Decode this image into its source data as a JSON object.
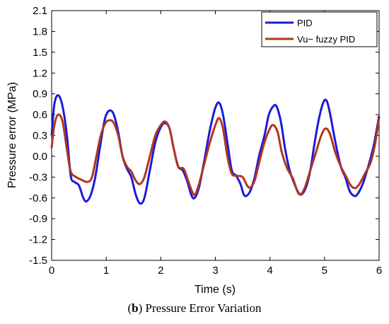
{
  "caption": {
    "letter": "b",
    "text": ") Pressure Error Variation",
    "open_paren": "("
  },
  "chart_data": {
    "type": "line",
    "title": "",
    "xlabel": "Time (s)",
    "ylabel": "Pressure error (MPa)",
    "xlim": [
      0,
      6
    ],
    "ylim": [
      -1.5,
      2.1
    ],
    "xticks": [
      0,
      1,
      2,
      3,
      4,
      5,
      6
    ],
    "yticks": [
      -1.5,
      -1.2,
      -0.9,
      -0.6,
      -0.3,
      0.0,
      0.3,
      0.6,
      0.9,
      1.2,
      1.5,
      1.8,
      2.1
    ],
    "grid": false,
    "legend": "top-right",
    "series": [
      {
        "name": "PID",
        "color": "#1a1adb",
        "points": [
          [
            0,
            0.3
          ],
          [
            0.05,
            0.75
          ],
          [
            0.12,
            0.88
          ],
          [
            0.2,
            0.72
          ],
          [
            0.28,
            0.3
          ],
          [
            0.35,
            -0.28
          ],
          [
            0.42,
            -0.37
          ],
          [
            0.5,
            -0.42
          ],
          [
            0.58,
            -0.6
          ],
          [
            0.64,
            -0.65
          ],
          [
            0.72,
            -0.55
          ],
          [
            0.8,
            -0.3
          ],
          [
            0.9,
            0.2
          ],
          [
            0.98,
            0.55
          ],
          [
            1.06,
            0.66
          ],
          [
            1.14,
            0.6
          ],
          [
            1.22,
            0.35
          ],
          [
            1.3,
            0.0
          ],
          [
            1.38,
            -0.18
          ],
          [
            1.46,
            -0.3
          ],
          [
            1.54,
            -0.55
          ],
          [
            1.62,
            -0.68
          ],
          [
            1.7,
            -0.6
          ],
          [
            1.8,
            -0.2
          ],
          [
            1.9,
            0.2
          ],
          [
            2.0,
            0.42
          ],
          [
            2.08,
            0.48
          ],
          [
            2.16,
            0.4
          ],
          [
            2.24,
            0.1
          ],
          [
            2.32,
            -0.15
          ],
          [
            2.4,
            -0.2
          ],
          [
            2.48,
            -0.35
          ],
          [
            2.56,
            -0.56
          ],
          [
            2.62,
            -0.6
          ],
          [
            2.7,
            -0.45
          ],
          [
            2.8,
            -0.05
          ],
          [
            2.9,
            0.38
          ],
          [
            3.0,
            0.7
          ],
          [
            3.07,
            0.77
          ],
          [
            3.14,
            0.6
          ],
          [
            3.22,
            0.2
          ],
          [
            3.3,
            -0.2
          ],
          [
            3.38,
            -0.28
          ],
          [
            3.46,
            -0.4
          ],
          [
            3.52,
            -0.55
          ],
          [
            3.57,
            -0.57
          ],
          [
            3.64,
            -0.5
          ],
          [
            3.72,
            -0.3
          ],
          [
            3.8,
            0.0
          ],
          [
            3.9,
            0.3
          ],
          [
            3.98,
            0.6
          ],
          [
            4.06,
            0.72
          ],
          [
            4.12,
            0.72
          ],
          [
            4.2,
            0.5
          ],
          [
            4.28,
            0.1
          ],
          [
            4.36,
            -0.2
          ],
          [
            4.44,
            -0.38
          ],
          [
            4.52,
            -0.52
          ],
          [
            4.58,
            -0.55
          ],
          [
            4.66,
            -0.45
          ],
          [
            4.74,
            -0.2
          ],
          [
            4.82,
            0.2
          ],
          [
            4.9,
            0.55
          ],
          [
            4.98,
            0.78
          ],
          [
            5.04,
            0.8
          ],
          [
            5.1,
            0.62
          ],
          [
            5.2,
            0.2
          ],
          [
            5.3,
            -0.15
          ],
          [
            5.38,
            -0.3
          ],
          [
            5.46,
            -0.5
          ],
          [
            5.54,
            -0.57
          ],
          [
            5.6,
            -0.55
          ],
          [
            5.7,
            -0.4
          ],
          [
            5.8,
            -0.15
          ],
          [
            5.9,
            0.15
          ],
          [
            6.0,
            0.58
          ]
        ]
      },
      {
        "name": "Vu− fuzzy PID",
        "color": "#b0361f",
        "points": [
          [
            0,
            0.12
          ],
          [
            0.05,
            0.45
          ],
          [
            0.12,
            0.6
          ],
          [
            0.2,
            0.5
          ],
          [
            0.28,
            0.1
          ],
          [
            0.35,
            -0.22
          ],
          [
            0.45,
            -0.3
          ],
          [
            0.55,
            -0.34
          ],
          [
            0.66,
            -0.37
          ],
          [
            0.74,
            -0.3
          ],
          [
            0.82,
            0.0
          ],
          [
            0.9,
            0.3
          ],
          [
            0.98,
            0.47
          ],
          [
            1.06,
            0.52
          ],
          [
            1.14,
            0.48
          ],
          [
            1.22,
            0.3
          ],
          [
            1.3,
            0.0
          ],
          [
            1.38,
            -0.15
          ],
          [
            1.46,
            -0.22
          ],
          [
            1.54,
            -0.35
          ],
          [
            1.62,
            -0.4
          ],
          [
            1.7,
            -0.3
          ],
          [
            1.8,
            0.0
          ],
          [
            1.9,
            0.3
          ],
          [
            2.0,
            0.45
          ],
          [
            2.08,
            0.5
          ],
          [
            2.16,
            0.4
          ],
          [
            2.24,
            0.1
          ],
          [
            2.32,
            -0.15
          ],
          [
            2.42,
            -0.18
          ],
          [
            2.5,
            -0.35
          ],
          [
            2.58,
            -0.52
          ],
          [
            2.63,
            -0.55
          ],
          [
            2.7,
            -0.4
          ],
          [
            2.8,
            -0.1
          ],
          [
            2.9,
            0.2
          ],
          [
            3.0,
            0.45
          ],
          [
            3.07,
            0.55
          ],
          [
            3.14,
            0.4
          ],
          [
            3.22,
            0.0
          ],
          [
            3.3,
            -0.25
          ],
          [
            3.4,
            -0.28
          ],
          [
            3.5,
            -0.3
          ],
          [
            3.58,
            -0.42
          ],
          [
            3.64,
            -0.45
          ],
          [
            3.72,
            -0.35
          ],
          [
            3.8,
            -0.1
          ],
          [
            3.9,
            0.2
          ],
          [
            4.0,
            0.4
          ],
          [
            4.06,
            0.45
          ],
          [
            4.14,
            0.35
          ],
          [
            4.22,
            0.05
          ],
          [
            4.32,
            -0.18
          ],
          [
            4.42,
            -0.32
          ],
          [
            4.5,
            -0.5
          ],
          [
            4.56,
            -0.55
          ],
          [
            4.64,
            -0.45
          ],
          [
            4.74,
            -0.2
          ],
          [
            4.84,
            0.05
          ],
          [
            4.94,
            0.3
          ],
          [
            5.02,
            0.4
          ],
          [
            5.1,
            0.32
          ],
          [
            5.2,
            0.05
          ],
          [
            5.3,
            -0.15
          ],
          [
            5.4,
            -0.3
          ],
          [
            5.48,
            -0.42
          ],
          [
            5.56,
            -0.46
          ],
          [
            5.64,
            -0.4
          ],
          [
            5.74,
            -0.25
          ],
          [
            5.84,
            -0.1
          ],
          [
            5.92,
            0.15
          ],
          [
            6.0,
            0.55
          ]
        ]
      }
    ]
  }
}
